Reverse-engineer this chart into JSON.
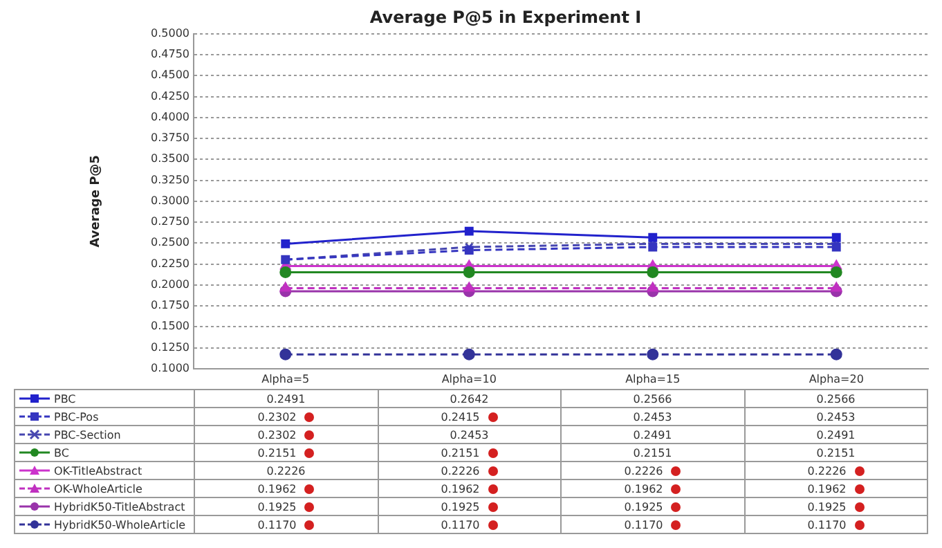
{
  "chart_data": {
    "type": "line",
    "title": "Average P@5 in Experiment I",
    "ylabel": "Average P@5",
    "categories": [
      "Alpha=5",
      "Alpha=10",
      "Alpha=15",
      "Alpha=20"
    ],
    "ylim": [
      0.1,
      0.5
    ],
    "yticks": [
      {
        "value": 0.1,
        "label": "0.1000"
      },
      {
        "value": 0.125,
        "label": "0.1250"
      },
      {
        "value": 0.15,
        "label": "0.1500"
      },
      {
        "value": 0.175,
        "label": "0.1750"
      },
      {
        "value": 0.2,
        "label": "0.2000"
      },
      {
        "value": 0.225,
        "label": "0.2250"
      },
      {
        "value": 0.25,
        "label": "0.2500"
      },
      {
        "value": 0.275,
        "label": "0.2750"
      },
      {
        "value": 0.3,
        "label": "0.3000"
      },
      {
        "value": 0.325,
        "label": "0.3250"
      },
      {
        "value": 0.35,
        "label": "0.3500"
      },
      {
        "value": 0.375,
        "label": "0.3750"
      },
      {
        "value": 0.4,
        "label": "0.4000"
      },
      {
        "value": 0.425,
        "label": "0.4250"
      },
      {
        "value": 0.45,
        "label": "0.4500"
      },
      {
        "value": 0.475,
        "label": "0.4750"
      },
      {
        "value": 0.5,
        "label": "0.5000"
      }
    ],
    "grid": "y",
    "legend": "bottom",
    "series": [
      {
        "name": "PBC",
        "color": "#2222cc",
        "marker": "square",
        "line_style": "solid",
        "values": [
          0.2491,
          0.2642,
          0.2566,
          0.2566
        ],
        "value_labels": [
          "0.2491",
          "0.2642",
          "0.2566",
          "0.2566"
        ]
      },
      {
        "name": "PBC-Pos",
        "color": "#3535c0",
        "marker": "square",
        "line_style": "dashed",
        "values": [
          0.2302,
          0.2415,
          0.2453,
          0.2453
        ],
        "value_labels": [
          "0.2302",
          "0.2415",
          "0.2453",
          "0.2453"
        ]
      },
      {
        "name": "PBC-Section",
        "color": "#4646b0",
        "marker": "cross",
        "line_style": "dashed",
        "values": [
          0.2302,
          0.2453,
          0.2491,
          0.2491
        ],
        "value_labels": [
          "0.2302",
          "0.2453",
          "0.2491",
          "0.2491"
        ]
      },
      {
        "name": "BC",
        "color": "#228822",
        "marker": "circle",
        "line_style": "solid",
        "values": [
          0.2151,
          0.2151,
          0.2151,
          0.2151
        ],
        "value_labels": [
          "0.2151",
          "0.2151",
          "0.2151",
          "0.2151"
        ]
      },
      {
        "name": "OK-TitleAbstract",
        "color": "#cc33cc",
        "marker": "triangle",
        "line_style": "solid",
        "values": [
          0.2226,
          0.2226,
          0.2226,
          0.2226
        ],
        "value_labels": [
          "0.2226",
          "0.2226",
          "0.2226",
          "0.2226"
        ]
      },
      {
        "name": "OK-WholeArticle",
        "color": "#c030c0",
        "marker": "triangle",
        "line_style": "dashed",
        "values": [
          0.1962,
          0.1962,
          0.1962,
          0.1962
        ],
        "value_labels": [
          "0.1962",
          "0.1962",
          "0.1962",
          "0.1962"
        ]
      },
      {
        "name": "HybridK50-TitleAbstract",
        "color": "#9933aa",
        "marker": "circle",
        "line_style": "solid",
        "values": [
          0.1925,
          0.1925,
          0.1925,
          0.1925
        ],
        "value_labels": [
          "0.1925",
          "0.1925",
          "0.1925",
          "0.1925"
        ]
      },
      {
        "name": "HybridK50-WholeArticle",
        "color": "#333399",
        "marker": "circle",
        "line_style": "dashed",
        "values": [
          0.117,
          0.117,
          0.117,
          0.117
        ],
        "value_labels": [
          "0.1170",
          "0.1170",
          "0.1170",
          "0.1170"
        ]
      }
    ]
  }
}
